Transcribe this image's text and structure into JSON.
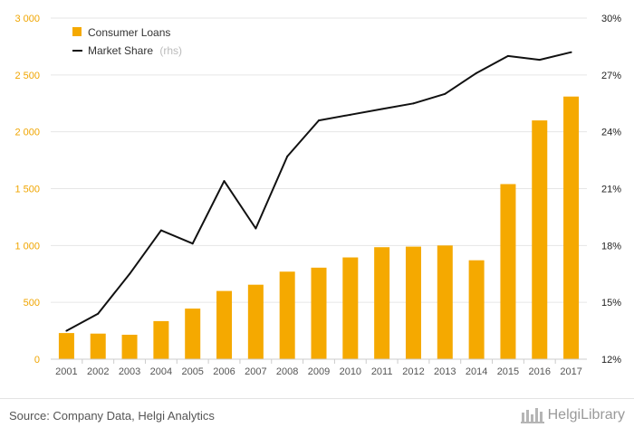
{
  "chart_data": {
    "type": "bar+line",
    "categories": [
      "2001",
      "2002",
      "2003",
      "2004",
      "2005",
      "2006",
      "2007",
      "2008",
      "2009",
      "2010",
      "2011",
      "2012",
      "2013",
      "2014",
      "2015",
      "2016",
      "2017"
    ],
    "series": [
      {
        "name": "Consumer Loans",
        "type": "bar",
        "axis": "left",
        "color": "#f5a900",
        "values": [
          230,
          225,
          215,
          335,
          445,
          600,
          655,
          770,
          805,
          895,
          985,
          990,
          1000,
          870,
          1540,
          2100,
          2310
        ]
      },
      {
        "name": "Market Share",
        "note": "(rhs)",
        "type": "line",
        "axis": "right",
        "color": "#111111",
        "values": [
          13.5,
          14.4,
          16.5,
          18.8,
          18.1,
          21.4,
          18.9,
          22.7,
          24.6,
          24.9,
          25.2,
          25.5,
          26.0,
          27.1,
          28.0,
          27.8,
          28.2
        ]
      }
    ],
    "y_left": {
      "ylim": [
        0,
        3000
      ],
      "ticks": [
        0,
        500,
        1000,
        1500,
        2000,
        2500,
        3000
      ],
      "tick_labels": [
        "0",
        "500",
        "1 000",
        "1 500",
        "2 000",
        "2 500",
        "3 000"
      ],
      "color": "#f0a500"
    },
    "y_right": {
      "ylim": [
        12,
        30
      ],
      "ticks": [
        12,
        15,
        18,
        21,
        24,
        27,
        30
      ],
      "tick_labels": [
        "12%",
        "15%",
        "18%",
        "21%",
        "24%",
        "27%",
        "30%"
      ]
    },
    "grid": true,
    "legend_position": "top-left"
  },
  "footer": {
    "source": "Source: Company Data, Helgi Analytics",
    "brand": "HelgiLibrary"
  },
  "colors": {
    "bar": "#f5a900",
    "line": "#111111",
    "grid": "#e6e6e6"
  }
}
